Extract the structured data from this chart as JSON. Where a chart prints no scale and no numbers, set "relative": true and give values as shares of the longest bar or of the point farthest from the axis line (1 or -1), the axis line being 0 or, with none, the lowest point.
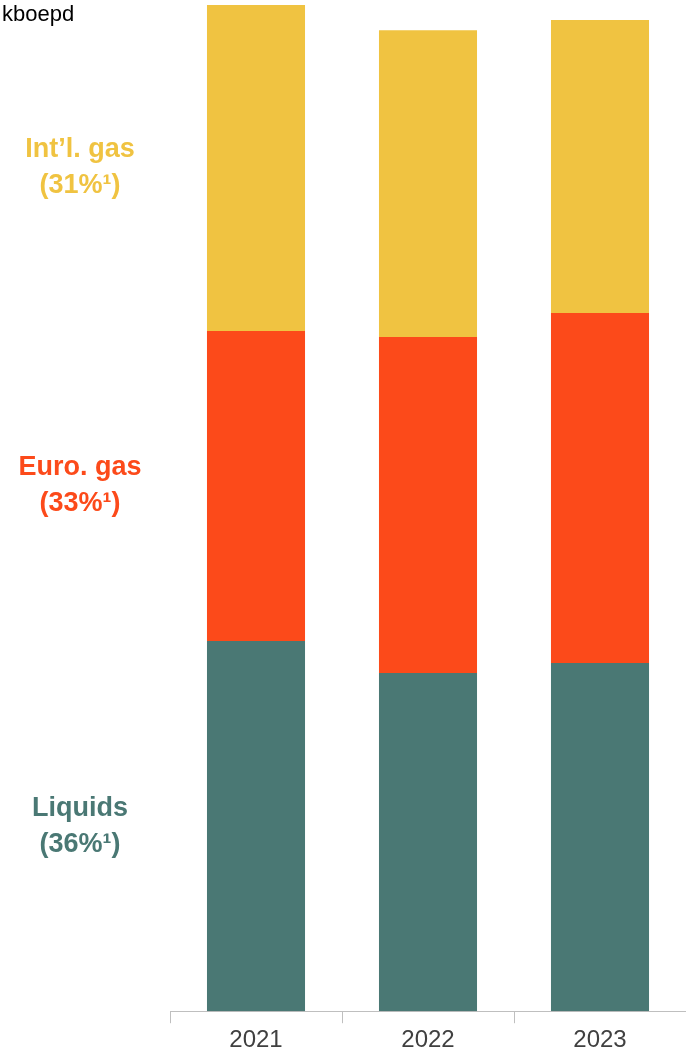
{
  "chart_data": {
    "type": "bar",
    "ylabel": "kboepd",
    "categories": [
      "2021",
      "2022",
      "2023"
    ],
    "stacked": true,
    "relative": true,
    "legend": false,
    "grid": false,
    "series": [
      {
        "name": "Liquids (36%¹)",
        "color": "#4a7874",
        "values": [
          0.368,
          0.336,
          0.346
        ]
      },
      {
        "name": "Euro. gas (33%¹)",
        "color": "#fc4a1a",
        "values": [
          0.308,
          0.334,
          0.348
        ]
      },
      {
        "name": "Int’l. gas (31%¹)",
        "color": "#f0c341",
        "values": [
          0.324,
          0.305,
          0.291
        ]
      }
    ]
  }
}
